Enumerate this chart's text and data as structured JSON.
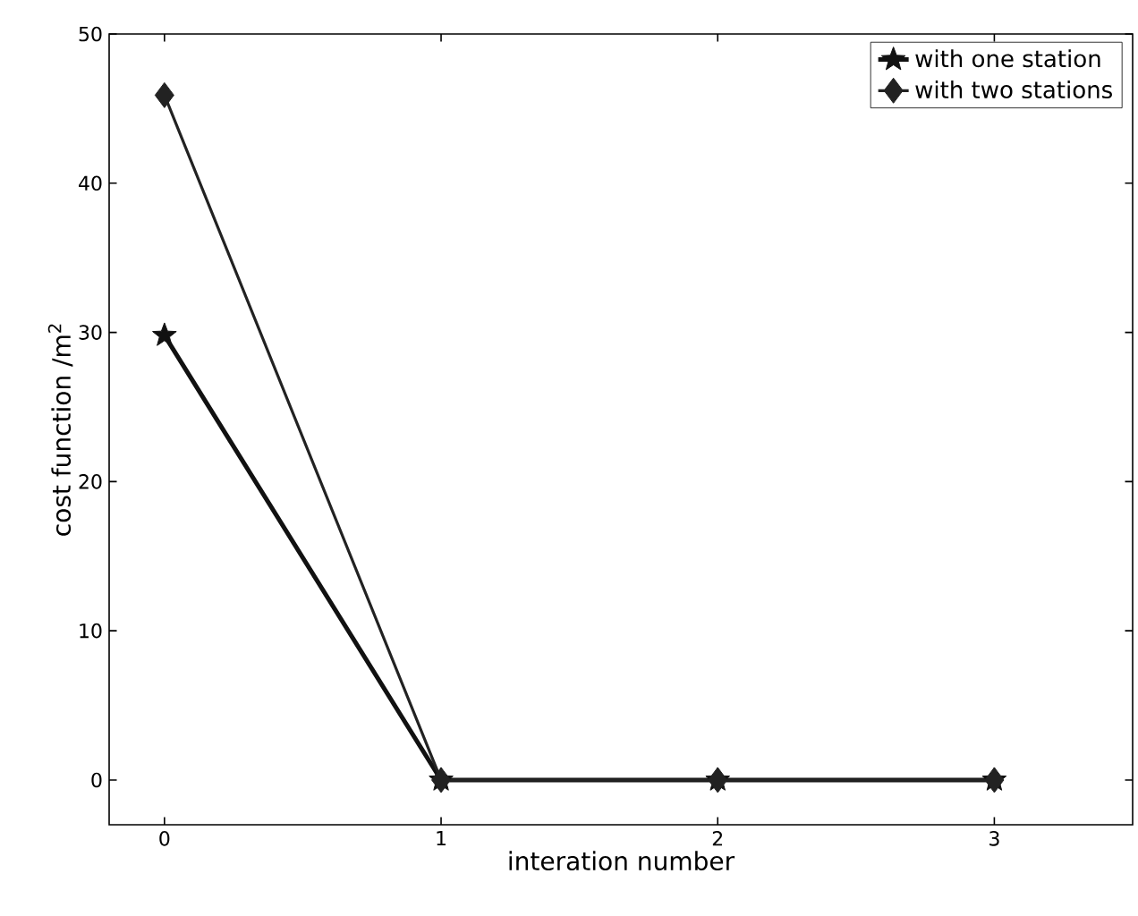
{
  "chart_data": {
    "type": "line",
    "xlabel": "interation number",
    "ylabel": "cost function /m$^{2}$",
    "x": [
      0,
      1,
      2,
      3
    ],
    "series": [
      {
        "name": "with one station",
        "color": "#111111",
        "marker": "star",
        "values": [
          29.8,
          0,
          0,
          0
        ]
      },
      {
        "name": "with two stations",
        "color": "#222222",
        "marker": "diamond",
        "values": [
          45.9,
          0,
          0,
          0
        ]
      }
    ],
    "xlim": [
      -0.2,
      3.5
    ],
    "ylim": [
      -3,
      50
    ],
    "xticks": [
      0,
      1,
      2,
      3
    ],
    "yticks": [
      0,
      10,
      20,
      30,
      40,
      50
    ],
    "legend": "top right",
    "grid": false,
    "line_style": "solid"
  }
}
